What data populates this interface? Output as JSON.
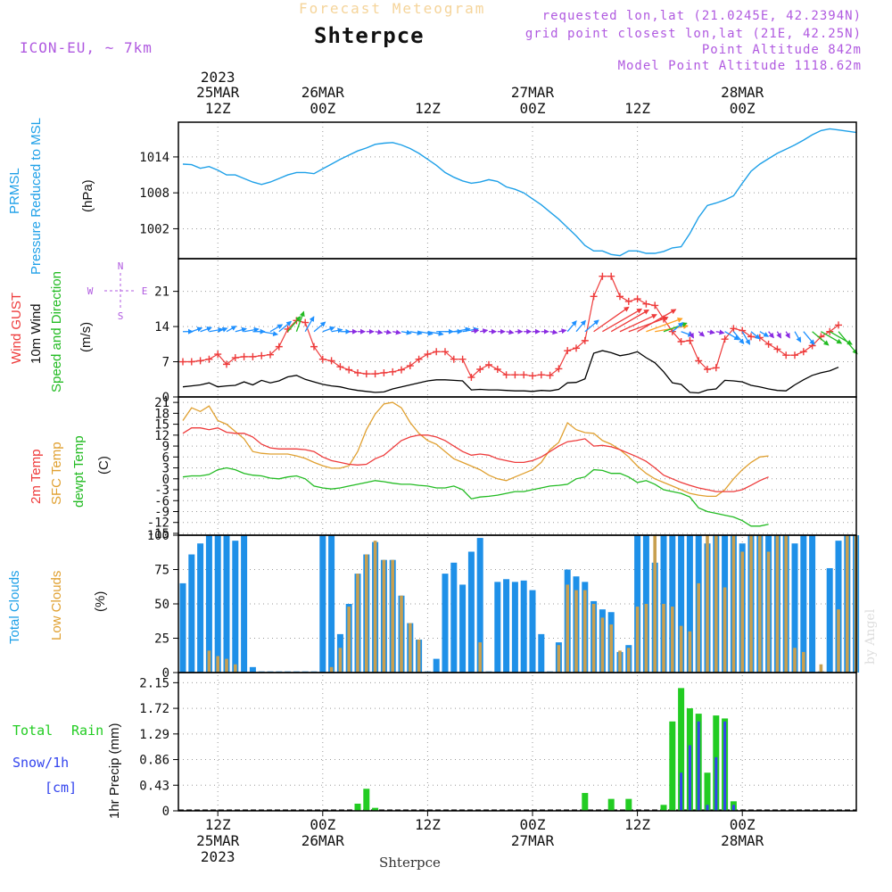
{
  "header": {
    "title": "Forecast Meteogram",
    "location": "Shterpce",
    "model": "ICON-EU, ~ 7km",
    "requested": "requested lon,lat (21.0245E, 42.2394N)",
    "grid_point": "grid point closest lon,lat (21E, 42.25N)",
    "point_alt": "Point Altitude 842m",
    "model_alt": "Model Point Altitude 1118.62m"
  },
  "footer_location": "Shterpce",
  "watermark": "by Angel",
  "colors": {
    "prmsl": "#1ea0e8",
    "gust": "#ee3b3b",
    "wind": "#000000",
    "wind_dir": "#22bb22",
    "t2m": "#ee3b3b",
    "sfc": "#e0a030",
    "dew": "#22bb22",
    "total_clouds": "#1e90e8",
    "low_clouds": "#c8a050",
    "rain": "#22cc22",
    "snow": "#3344ee",
    "compass": "#b05ae0"
  },
  "time_axis": {
    "top_year": "2023",
    "top": [
      {
        "i": 4,
        "l1": "25MAR",
        "l2": "12Z"
      },
      {
        "i": 16,
        "l1": "26MAR",
        "l2": "00Z"
      },
      {
        "i": 28,
        "l1": "",
        "l2": "12Z"
      },
      {
        "i": 40,
        "l1": "27MAR",
        "l2": "00Z"
      },
      {
        "i": 52,
        "l1": "",
        "l2": "12Z"
      },
      {
        "i": 64,
        "l1": "28MAR",
        "l2": "00Z"
      }
    ],
    "bottom": [
      {
        "i": 4,
        "l1": "12Z",
        "l2": "25MAR",
        "l3": "2023"
      },
      {
        "i": 16,
        "l1": "00Z",
        "l2": "26MAR",
        "l3": ""
      },
      {
        "i": 28,
        "l1": "12Z",
        "l2": "",
        "l3": ""
      },
      {
        "i": 40,
        "l1": "00Z",
        "l2": "27MAR",
        "l3": ""
      },
      {
        "i": 52,
        "l1": "12Z",
        "l2": "",
        "l3": ""
      },
      {
        "i": 64,
        "l1": "00Z",
        "l2": "28MAR",
        "l3": ""
      }
    ]
  },
  "labels": {
    "prmsl": [
      "PRMSL",
      "Pressure Reduced to MSL",
      "(hPa)"
    ],
    "wind": [
      "Wind GUST",
      "10m Wind",
      "Speed and Direction",
      "(m/s)"
    ],
    "temp": [
      "2m Temp",
      "SFC Temp",
      "dewpt Temp",
      "(C)"
    ],
    "clouds": [
      "Total Clouds",
      "Low Clouds",
      "(%)"
    ],
    "precip": [
      "Total",
      "Rain",
      "Snow/1h",
      "[cm]",
      "1hr Precip (mm)"
    ],
    "compass": {
      "n": "N",
      "s": "S",
      "w": "W",
      "e": "E"
    }
  },
  "chart_data": [
    {
      "type": "line",
      "title": "PRMSL Pressure Reduced to MSL",
      "ylabel": "(hPa)",
      "ylim": [
        996.5,
        1019
      ],
      "yticks": [
        1002,
        1008,
        1014
      ],
      "series": [
        {
          "name": "PRMSL",
          "values": [
            1012.8,
            1012.7,
            1012.1,
            1012.4,
            1011.8,
            1011.0,
            1011.0,
            1010.4,
            1009.8,
            1009.4,
            1009.8,
            1010.4,
            1011.0,
            1011.4,
            1011.4,
            1011.2,
            1012.0,
            1012.8,
            1013.6,
            1014.3,
            1015.0,
            1015.5,
            1016.1,
            1016.3,
            1016.4,
            1016.0,
            1015.4,
            1014.6,
            1013.6,
            1012.6,
            1011.4,
            1010.6,
            1010.0,
            1009.6,
            1009.8,
            1010.2,
            1009.9,
            1009.0,
            1008.6,
            1008.0,
            1007.0,
            1006.0,
            1004.8,
            1003.6,
            1002.2,
            1000.8,
            999.2,
            998.3,
            998.3,
            997.7,
            997.5,
            998.3,
            998.3,
            997.9,
            997.9,
            998.2,
            998.8,
            999.0,
            1001.2,
            1003.9,
            1005.9,
            1006.3,
            1006.8,
            1007.5,
            1009.6,
            1011.6,
            1012.8,
            1013.7,
            1014.6,
            1015.3,
            1016.0,
            1016.8,
            1017.7,
            1018.4,
            1018.7,
            1018.5,
            1018.3,
            1018.1
          ]
        }
      ]
    },
    {
      "type": "line",
      "title": "Wind GUST / 10m Wind Speed and Direction",
      "ylabel": "(m/s)",
      "ylim": [
        0,
        27
      ],
      "yticks": [
        0,
        7,
        14,
        21
      ],
      "series": [
        {
          "name": "Wind GUST",
          "values": [
            7,
            7,
            7.2,
            7.5,
            8.5,
            6.5,
            7.8,
            8,
            8,
            8.2,
            8.4,
            10,
            13.5,
            15.2,
            14.8,
            10,
            7.5,
            7.2,
            6,
            5.4,
            4.8,
            4.6,
            4.6,
            4.8,
            5,
            5.4,
            6.2,
            7.5,
            8.5,
            9,
            9,
            7.5,
            7.5,
            3.9,
            5.5,
            6.4,
            5.5,
            4.4,
            4.4,
            4.4,
            4.2,
            4.4,
            4.3,
            5.6,
            9.2,
            9.7,
            11.2,
            20,
            24,
            24,
            20,
            19,
            19.5,
            18.5,
            18.2,
            15.5,
            13,
            11,
            11.2,
            7.2,
            5.5,
            5.8,
            11.5,
            13.6,
            13.2,
            12,
            11.8,
            10.5,
            9.5,
            8.3,
            8.3,
            9,
            10.2,
            12,
            13,
            14.3
          ]
        },
        {
          "name": "10m Wind",
          "values": [
            2,
            2.2,
            2.4,
            2.8,
            2,
            2.2,
            2.3,
            3,
            2.4,
            3.3,
            2.8,
            3.2,
            4,
            4.3,
            3.5,
            3,
            2.5,
            2.2,
            2,
            1.6,
            1.3,
            1.1,
            0.9,
            1,
            1.6,
            2,
            2.4,
            2.8,
            3.2,
            3.4,
            3.4,
            3.3,
            3.2,
            1.4,
            1.5,
            1.4,
            1.4,
            1.3,
            1.2,
            1.2,
            1.1,
            1.3,
            1.2,
            1.5,
            2.8,
            2.9,
            3.6,
            8.7,
            9.2,
            8.8,
            8.2,
            8.5,
            9,
            7.8,
            6.8,
            5,
            2.8,
            2.5,
            0.9,
            0.8,
            1.4,
            1.6,
            3.3,
            3.2,
            3,
            2.3,
            2,
            1.6,
            1.3,
            1.2,
            2.4,
            3.4,
            4.3,
            4.8,
            5.2,
            5.9
          ]
        },
        {
          "name": "Direction (deg, from)",
          "values": [
            270,
            250,
            250,
            260,
            250,
            240,
            255,
            260,
            270,
            280,
            240,
            230,
            220,
            200,
            210,
            230,
            250,
            260,
            270,
            270,
            270,
            270,
            280,
            280,
            280,
            280,
            280,
            280,
            280,
            270,
            270,
            260,
            260,
            260,
            260,
            270,
            270,
            280,
            270,
            270,
            270,
            270,
            280,
            260,
            220,
            220,
            230,
            235,
            240,
            240,
            245,
            250,
            240,
            250,
            260,
            250,
            230,
            290,
            330,
            310,
            280,
            280,
            300,
            320,
            330,
            310,
            300,
            320,
            330,
            330,
            330,
            320,
            310,
            300,
            300,
            320
          ]
        }
      ]
    },
    {
      "type": "line",
      "title": "2m Temp / SFC Temp / dewpt Temp",
      "ylabel": "(C)",
      "ylim": [
        -15.5,
        22.5
      ],
      "yticks": [
        -15,
        -12,
        -9,
        -6,
        -3,
        0,
        3,
        6,
        9,
        12,
        15,
        18,
        21
      ],
      "series": [
        {
          "name": "2m Temp",
          "values": [
            12.5,
            14,
            14,
            13.5,
            14,
            12.8,
            12.5,
            12.5,
            11.5,
            9.5,
            8.5,
            8.2,
            8.2,
            8.2,
            8,
            7.5,
            6,
            5,
            4.5,
            4,
            3.8,
            4,
            5.5,
            6.5,
            8.5,
            10.5,
            11.5,
            12,
            12,
            11.5,
            10.5,
            9,
            7.5,
            6.5,
            6.8,
            6.5,
            5.5,
            5,
            4.5,
            4.5,
            5,
            6,
            7.5,
            9,
            10.2,
            10.5,
            11,
            9,
            9.2,
            8.8,
            8,
            7,
            6,
            4.8,
            3,
            1,
            0,
            -1,
            -1.8,
            -2.5,
            -3,
            -3.5,
            -3.5,
            -3.5,
            -3,
            -1.8,
            -0.5,
            0.5
          ]
        },
        {
          "name": "SFC Temp",
          "values": [
            16,
            19.5,
            18.5,
            20,
            16,
            15,
            13,
            11,
            7.5,
            7,
            6.8,
            6.8,
            6.8,
            6.3,
            5.6,
            4.5,
            3.6,
            2.9,
            2.9,
            3.6,
            7.5,
            13.5,
            17.8,
            20.6,
            21,
            19.5,
            15.5,
            12.5,
            10.5,
            9.5,
            7.5,
            5.5,
            4.5,
            3.5,
            2.5,
            1,
            0,
            -0.5,
            0.5,
            1.5,
            2.5,
            4.5,
            8,
            10,
            15.4,
            13.5,
            12.7,
            12.5,
            10.5,
            9.5,
            8,
            6,
            3.5,
            1.5,
            0,
            -1,
            -2,
            -3,
            -4,
            -4.5,
            -4.8,
            -4.8,
            -3,
            0,
            2.5,
            4.5,
            6,
            6.3
          ]
        },
        {
          "name": "dewpt Temp",
          "values": [
            0.5,
            0.8,
            0.8,
            1.2,
            2.5,
            3,
            2.5,
            1.5,
            1,
            0.8,
            0.2,
            0,
            0.5,
            0.8,
            0,
            -2,
            -2.5,
            -2.8,
            -2.5,
            -2,
            -1.5,
            -1,
            -0.5,
            -0.8,
            -1.2,
            -1.5,
            -1.5,
            -1.8,
            -2,
            -2.5,
            -2.5,
            -2,
            -3,
            -5.5,
            -5,
            -4.8,
            -4.5,
            -4,
            -3.5,
            -3.5,
            -3,
            -2.5,
            -2,
            -1.8,
            -1.5,
            0,
            0.5,
            2.5,
            2.3,
            1.5,
            1.5,
            0.5,
            -1,
            -0.5,
            -1.5,
            -3,
            -3.5,
            -4,
            -5,
            -8,
            -9,
            -9.5,
            -10,
            -10.5,
            -11.5,
            -13,
            -13,
            -12.5
          ]
        }
      ]
    },
    {
      "type": "bar",
      "title": "Total Clouds / Low Clouds",
      "ylabel": "(%)",
      "ylim": [
        0,
        100
      ],
      "yticks": [
        0,
        25,
        50,
        75,
        100
      ],
      "series": [
        {
          "name": "Total Clouds",
          "values": [
            65,
            86,
            94,
            100,
            100,
            100,
            96,
            100,
            4,
            0,
            0,
            0,
            0,
            0,
            0,
            0,
            100,
            100,
            28,
            50,
            72,
            86,
            95,
            82,
            82,
            56,
            36,
            24,
            0,
            10,
            72,
            80,
            64,
            88,
            98,
            0,
            66,
            68,
            66,
            67,
            60,
            28,
            0,
            22,
            75,
            70,
            66,
            52,
            46,
            44,
            15,
            20,
            100,
            100,
            80,
            100,
            100,
            100,
            100,
            100,
            94,
            100,
            100,
            100,
            94,
            100,
            100,
            100,
            100,
            100,
            94,
            100,
            100,
            0,
            76,
            96,
            100,
            100
          ]
        },
        {
          "name": "Low Clouds",
          "values": [
            0,
            0,
            0,
            16,
            12,
            10,
            6,
            0,
            0,
            0,
            0,
            0,
            0,
            0,
            0,
            0,
            0,
            4,
            18,
            48,
            72,
            86,
            96,
            82,
            82,
            56,
            36,
            24,
            0,
            0,
            0,
            0,
            0,
            0,
            22,
            0,
            0,
            0,
            0,
            0,
            0,
            0,
            0,
            20,
            64,
            60,
            60,
            50,
            40,
            35,
            16,
            18,
            48,
            50,
            100,
            50,
            48,
            34,
            30,
            65,
            100,
            100,
            62,
            100,
            88,
            100,
            100,
            88,
            100,
            100,
            18,
            15,
            0,
            6,
            0,
            46,
            100,
            100
          ]
        }
      ]
    },
    {
      "type": "bar",
      "title": "1hr Precip",
      "ylabel": "1hr Precip (mm)",
      "ylim": [
        0,
        2.15
      ],
      "yticks": [
        0,
        0.43,
        0.86,
        1.29,
        1.72,
        2.15
      ],
      "series": [
        {
          "name": "Total Rain",
          "values": [
            0,
            0,
            0,
            0,
            0,
            0,
            0,
            0,
            0,
            0,
            0,
            0,
            0,
            0,
            0,
            0,
            0,
            0,
            0,
            0,
            0.12,
            0.37,
            0.05,
            0,
            0,
            0,
            0,
            0,
            0,
            0,
            0,
            0,
            0,
            0,
            0,
            0,
            0,
            0,
            0,
            0,
            0,
            0,
            0,
            0,
            0,
            0,
            0.3,
            0,
            0,
            0.2,
            0,
            0.2,
            0,
            0,
            0,
            0.1,
            1.5,
            2.06,
            1.72,
            1.63,
            0.64,
            1.6,
            1.55,
            0.16
          ]
        },
        {
          "name": "Snow/1h",
          "values": [
            0,
            0,
            0,
            0,
            0,
            0,
            0,
            0,
            0,
            0,
            0,
            0,
            0,
            0,
            0,
            0,
            0,
            0,
            0,
            0,
            0,
            0,
            0,
            0,
            0,
            0,
            0,
            0,
            0,
            0,
            0,
            0,
            0,
            0,
            0,
            0,
            0,
            0,
            0,
            0,
            0,
            0,
            0,
            0,
            0,
            0,
            0,
            0,
            0,
            0,
            0,
            0,
            0,
            0,
            0,
            0,
            0,
            0.64,
            1.1,
            1.5,
            0.1,
            0.9,
            1.5,
            0.1
          ]
        }
      ]
    }
  ]
}
